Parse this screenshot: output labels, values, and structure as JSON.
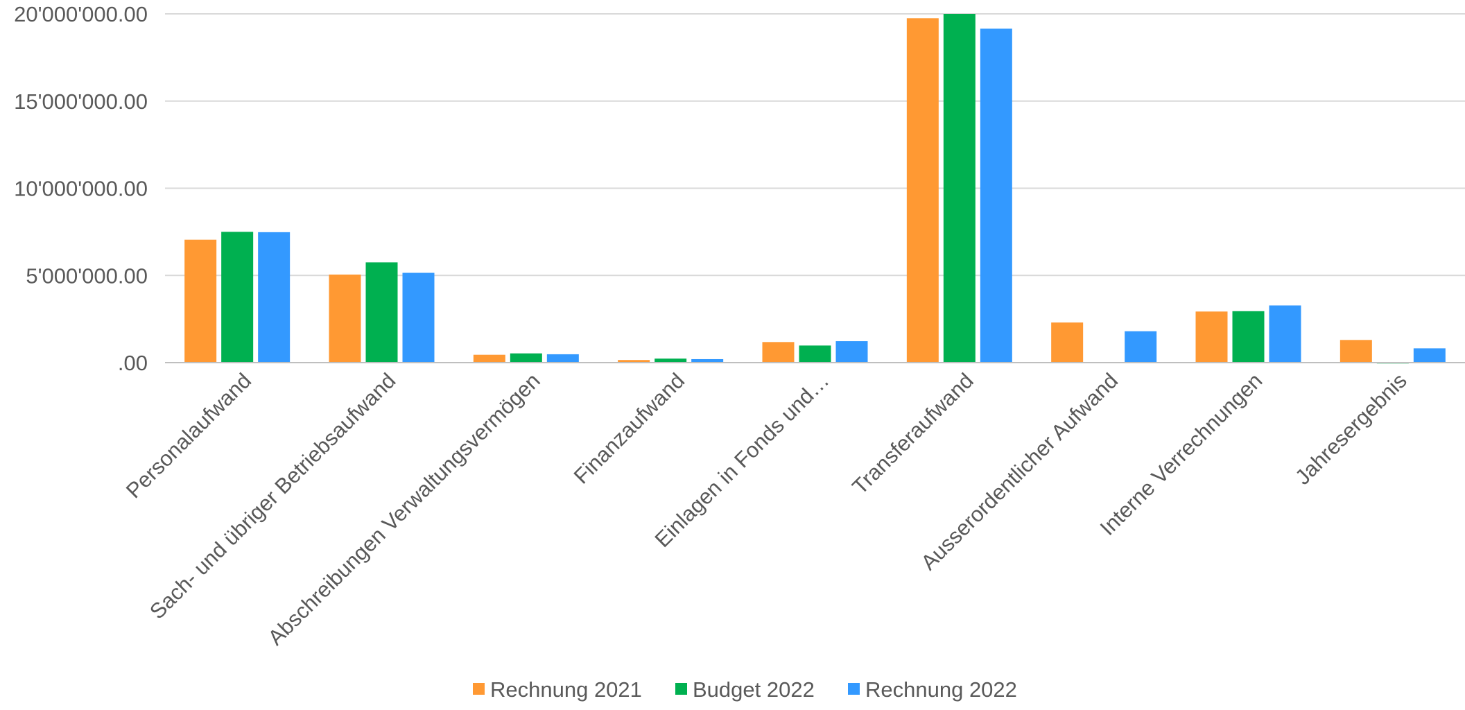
{
  "chart_data": {
    "type": "bar",
    "title": "",
    "xlabel": "",
    "ylabel": "",
    "ylim": [
      0,
      20000000
    ],
    "yticks": [
      {
        "value": 0,
        "label": ".00"
      },
      {
        "value": 5000000,
        "label": "5'000'000.00"
      },
      {
        "value": 10000000,
        "label": "10'000'000.00"
      },
      {
        "value": 15000000,
        "label": "15'000'000.00"
      },
      {
        "value": 20000000,
        "label": "20'000'000.00"
      }
    ],
    "categories": [
      "Personalaufwand",
      "Sach- und übriger Betriebsaufwand",
      "Abschreibungen Verwaltungsvermögen",
      "Finanzaufwand",
      "Einlagen in Fonds und…",
      "Transferaufwand",
      "Ausserordentlicher Aufwand",
      "Interne Verrechnungen",
      "Jahresergebnis"
    ],
    "series": [
      {
        "name": "Rechnung 2021",
        "color": "#FF9933",
        "values": [
          7050000,
          5050000,
          450000,
          150000,
          1180000,
          19750000,
          2300000,
          2930000,
          1300000
        ]
      },
      {
        "name": "Budget 2022",
        "color": "#00B050",
        "values": [
          7500000,
          5750000,
          530000,
          230000,
          980000,
          20000000,
          0,
          2950000,
          -50000
        ]
      },
      {
        "name": "Rechnung 2022",
        "color": "#3399FF",
        "values": [
          7480000,
          5150000,
          480000,
          200000,
          1230000,
          19150000,
          1800000,
          3280000,
          820000
        ]
      }
    ],
    "grid": true,
    "legend_position": "bottom"
  }
}
